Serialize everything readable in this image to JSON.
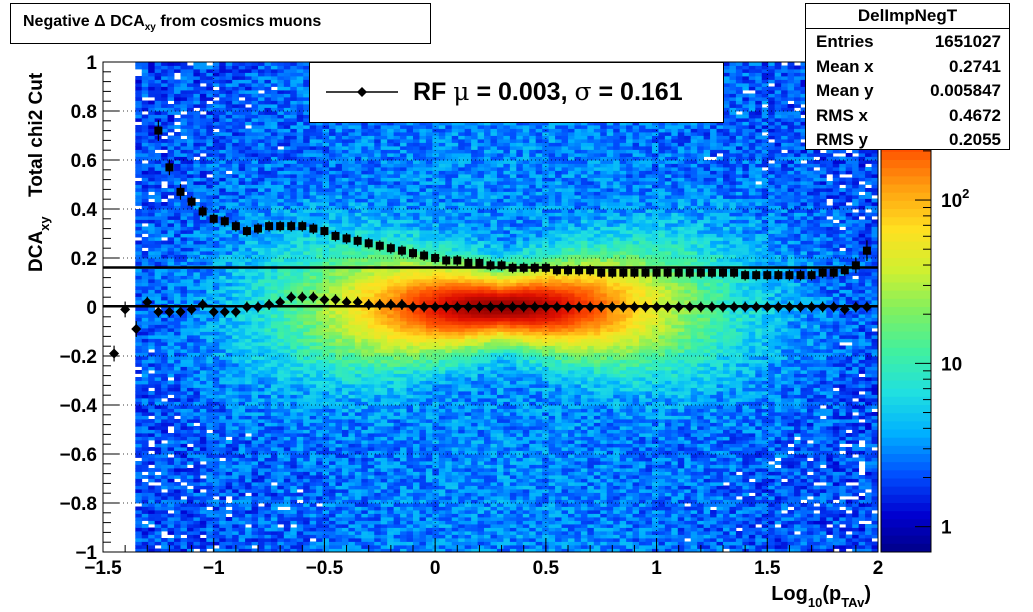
{
  "title": {
    "prefix": "Negative Δ DCA",
    "sub": "xy",
    "suffix": " from cosmics muons"
  },
  "stats": {
    "name": "DelImpNegT",
    "rows": [
      {
        "label": "Entries",
        "value": "1651027"
      },
      {
        "label": "Mean x",
        "value": "0.2741"
      },
      {
        "label": "Mean y",
        "value": "0.005847"
      },
      {
        "label": "RMS x",
        "value": "0.4672"
      },
      {
        "label": "RMS y",
        "value": "0.2055"
      }
    ]
  },
  "legend": {
    "text_rf": "RF ",
    "mu": "μ",
    "text_mid": " =  0.003, ",
    "sigma": "σ",
    "text_end": " =   0.161"
  },
  "colors": {
    "marker": "#000000",
    "palette": [
      "#000080",
      "#0000d0",
      "#0050ff",
      "#00b0ff",
      "#20e0e0",
      "#40f0a0",
      "#80f060",
      "#d0f030",
      "#ffe020",
      "#ffa010",
      "#ff5000",
      "#e01000",
      "#900000"
    ]
  },
  "chart_data": {
    "type": "heatmap",
    "xlabel": "Log10(pTAv)",
    "xlabel_parts": {
      "main": "Log",
      "sub1": "10",
      "mid": "(p",
      "sub2": "TAv",
      "end": ")"
    },
    "ylabel": "Total chi2 Cut DCAxy",
    "ylabel_parts": {
      "line1": "Total chi2 Cut",
      "main": "DCA",
      "sub": "xy"
    },
    "xlim": [
      -1.5,
      2
    ],
    "ylim": [
      -1,
      1
    ],
    "x_ticks": [
      "−1.5",
      "−1",
      "−0.5",
      "0",
      "0.5",
      "1",
      "1.5",
      "2"
    ],
    "x_tick_values": [
      -1.5,
      -1,
      -0.5,
      0,
      0.5,
      1,
      1.5,
      2
    ],
    "y_ticks": [
      "−1",
      "−0.8",
      "−0.6",
      "−0.4",
      "−0.2",
      "0",
      "0.2",
      "0.4",
      "0.6",
      "0.8",
      "1"
    ],
    "y_tick_values": [
      -1,
      -0.8,
      -0.6,
      -0.4,
      -0.2,
      0,
      0.2,
      0.4,
      0.6,
      0.8,
      1
    ],
    "z_scale": "log",
    "z_ticks": [
      {
        "label": "1",
        "value": 1
      },
      {
        "label": "10",
        "value": 10
      },
      {
        "label": "10",
        "exp": "2",
        "value": 100
      }
    ],
    "grid": true,
    "hist_center": {
      "x": 0.3,
      "y": 0.0
    },
    "series": [
      {
        "name": "mean",
        "marker": "diamond",
        "x": [
          -1.45,
          -1.4,
          -1.35,
          -1.3,
          -1.25,
          -1.2,
          -1.15,
          -1.1,
          -1.05,
          -1.0,
          -0.95,
          -0.9,
          -0.85,
          -0.8,
          -0.75,
          -0.7,
          -0.65,
          -0.6,
          -0.55,
          -0.5,
          -0.45,
          -0.4,
          -0.35,
          -0.3,
          -0.25,
          -0.2,
          -0.15,
          -0.1,
          -0.05,
          0.0,
          0.05,
          0.1,
          0.15,
          0.2,
          0.25,
          0.3,
          0.35,
          0.4,
          0.45,
          0.5,
          0.55,
          0.6,
          0.65,
          0.7,
          0.75,
          0.8,
          0.85,
          0.9,
          0.95,
          1.0,
          1.05,
          1.1,
          1.15,
          1.2,
          1.25,
          1.3,
          1.35,
          1.4,
          1.45,
          1.5,
          1.55,
          1.6,
          1.65,
          1.7,
          1.75,
          1.8,
          1.85,
          1.9,
          1.95
        ],
        "y": [
          -0.19,
          -0.01,
          -0.09,
          0.02,
          -0.02,
          -0.02,
          -0.02,
          -0.01,
          0.01,
          -0.02,
          -0.02,
          -0.02,
          0.0,
          0.0,
          0.01,
          0.02,
          0.04,
          0.04,
          0.04,
          0.03,
          0.03,
          0.02,
          0.02,
          0.01,
          0.01,
          0.01,
          0.01,
          0.0,
          0.0,
          0.0,
          0.0,
          0.0,
          0.0,
          0.0,
          0.0,
          0.0,
          0.0,
          0.0,
          0.0,
          0.0,
          0.0,
          0.0,
          0.0,
          0.0,
          0.0,
          0.0,
          0.0,
          0.0,
          0.0,
          0.0,
          0.0,
          0.0,
          0.0,
          0.0,
          0.0,
          0.0,
          0.0,
          0.0,
          0.0,
          0.0,
          0.0,
          0.0,
          0.0,
          0.0,
          0.0,
          0.0,
          -0.01,
          0.0,
          0.0
        ],
        "yerr": [
          0.02,
          0.02,
          0.02,
          0.01,
          0.01,
          0.01,
          0.01,
          0.01,
          0.01,
          0.01,
          0.01,
          0.01,
          0.01,
          0.01,
          0.01,
          0.01,
          0.01,
          0.01,
          0.01,
          0.01,
          0.01,
          0.01,
          0.01,
          0.01,
          0.01,
          0.01,
          0.01,
          0.01,
          0.01,
          0.01,
          0.01,
          0.01,
          0.01,
          0.01,
          0.01,
          0.01,
          0.01,
          0.01,
          0.01,
          0.01,
          0.01,
          0.01,
          0.01,
          0.01,
          0.01,
          0.01,
          0.01,
          0.01,
          0.01,
          0.01,
          0.01,
          0.01,
          0.01,
          0.01,
          0.01,
          0.01,
          0.01,
          0.01,
          0.01,
          0.01,
          0.01,
          0.01,
          0.01,
          0.01,
          0.01,
          0.01,
          0.01,
          0.01,
          0.01
        ]
      },
      {
        "name": "sigma",
        "marker": "square",
        "x": [
          -1.25,
          -1.2,
          -1.15,
          -1.1,
          -1.05,
          -1.0,
          -0.95,
          -0.9,
          -0.85,
          -0.8,
          -0.75,
          -0.7,
          -0.65,
          -0.6,
          -0.55,
          -0.5,
          -0.45,
          -0.4,
          -0.35,
          -0.3,
          -0.25,
          -0.2,
          -0.15,
          -0.1,
          -0.05,
          0.0,
          0.05,
          0.1,
          0.15,
          0.2,
          0.25,
          0.3,
          0.35,
          0.4,
          0.45,
          0.5,
          0.55,
          0.6,
          0.65,
          0.7,
          0.75,
          0.8,
          0.85,
          0.9,
          0.95,
          1.0,
          1.05,
          1.1,
          1.15,
          1.2,
          1.25,
          1.3,
          1.35,
          1.4,
          1.45,
          1.5,
          1.55,
          1.6,
          1.65,
          1.7,
          1.75,
          1.8,
          1.85,
          1.9,
          1.95
        ],
        "y": [
          0.72,
          0.57,
          0.47,
          0.43,
          0.39,
          0.36,
          0.35,
          0.33,
          0.31,
          0.32,
          0.33,
          0.33,
          0.33,
          0.33,
          0.32,
          0.31,
          0.29,
          0.28,
          0.27,
          0.26,
          0.25,
          0.24,
          0.23,
          0.22,
          0.21,
          0.2,
          0.19,
          0.19,
          0.18,
          0.18,
          0.17,
          0.17,
          0.16,
          0.16,
          0.16,
          0.16,
          0.15,
          0.15,
          0.15,
          0.15,
          0.14,
          0.14,
          0.14,
          0.14,
          0.14,
          0.14,
          0.14,
          0.14,
          0.14,
          0.14,
          0.14,
          0.14,
          0.14,
          0.13,
          0.13,
          0.13,
          0.13,
          0.13,
          0.13,
          0.13,
          0.14,
          0.14,
          0.15,
          0.17,
          0.23
        ],
        "yerr": [
          0.03,
          0.02,
          0.02,
          0.01,
          0.01,
          0.01,
          0.01,
          0.01,
          0.01,
          0.01,
          0.01,
          0.01,
          0.01,
          0.01,
          0.01,
          0.01,
          0.01,
          0.01,
          0.01,
          0.01,
          0.01,
          0.01,
          0.01,
          0.01,
          0.01,
          0.01,
          0.01,
          0.01,
          0.01,
          0.01,
          0.01,
          0.01,
          0.01,
          0.01,
          0.01,
          0.01,
          0.01,
          0.01,
          0.01,
          0.01,
          0.01,
          0.01,
          0.01,
          0.01,
          0.01,
          0.01,
          0.01,
          0.01,
          0.01,
          0.01,
          0.01,
          0.01,
          0.01,
          0.01,
          0.01,
          0.01,
          0.01,
          0.01,
          0.01,
          0.01,
          0.01,
          0.01,
          0.01,
          0.02,
          0.03
        ]
      }
    ],
    "fit_lines": [
      {
        "name": "mean-fit",
        "y": 0.003
      },
      {
        "name": "sigma-fit",
        "y": 0.161
      }
    ]
  }
}
